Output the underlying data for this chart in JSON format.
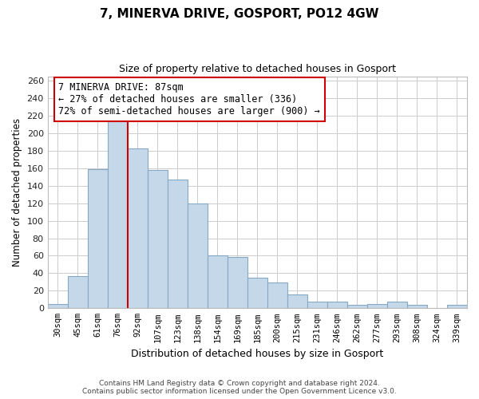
{
  "title": "7, MINERVA DRIVE, GOSPORT, PO12 4GW",
  "subtitle": "Size of property relative to detached houses in Gosport",
  "xlabel": "Distribution of detached houses by size in Gosport",
  "ylabel": "Number of detached properties",
  "categories": [
    "30sqm",
    "45sqm",
    "61sqm",
    "76sqm",
    "92sqm",
    "107sqm",
    "123sqm",
    "138sqm",
    "154sqm",
    "169sqm",
    "185sqm",
    "200sqm",
    "215sqm",
    "231sqm",
    "246sqm",
    "262sqm",
    "277sqm",
    "293sqm",
    "308sqm",
    "324sqm",
    "339sqm"
  ],
  "values": [
    5,
    37,
    159,
    219,
    183,
    158,
    147,
    120,
    60,
    59,
    35,
    29,
    16,
    8,
    8,
    4,
    5,
    8,
    4,
    0,
    4
  ],
  "bar_color": "#c5d8ea",
  "bar_edge_color": "#85a8c5",
  "vline_x_index": 3.5,
  "vline_color": "#cc0000",
  "annotation_line1": "7 MINERVA DRIVE: 87sqm",
  "annotation_line2": "← 27% of detached houses are smaller (336)",
  "annotation_line3": "72% of semi-detached houses are larger (900) →",
  "annotation_box_color": "#ffffff",
  "annotation_box_edge": "#cc0000",
  "ylim": [
    0,
    265
  ],
  "yticks": [
    0,
    20,
    40,
    60,
    80,
    100,
    120,
    140,
    160,
    180,
    200,
    220,
    240,
    260
  ],
  "footer_line1": "Contains HM Land Registry data © Crown copyright and database right 2024.",
  "footer_line2": "Contains public sector information licensed under the Open Government Licence v3.0.",
  "bg_color": "#ffffff",
  "grid_color": "#cccccc"
}
